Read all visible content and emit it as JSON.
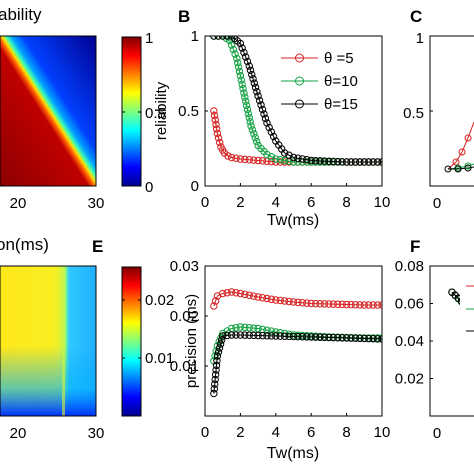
{
  "panel_labels": {
    "B": "B",
    "C": "C",
    "E": "E",
    "F": "F"
  },
  "texts": {
    "top_left_title_fragment": "ability",
    "bottom_left_xlabel_fragment": "on(ms)"
  },
  "colorbars": [
    {
      "label": "",
      "ticks": [
        "1",
        "0.5",
        "0"
      ]
    },
    {
      "label": "precision (ms)",
      "ticks": [
        "0.02",
        "0.01"
      ]
    }
  ],
  "heatmap_top": {
    "x_ticks": [
      "20",
      "30"
    ],
    "colormap": "jet"
  },
  "heatmap_bottom": {
    "x_ticks": [
      "20",
      "30"
    ],
    "colormap": "jet"
  },
  "panel_C": {
    "y_ticks": [
      "1",
      "0.5"
    ],
    "x_ticks": [
      "0"
    ]
  },
  "chart_data": [
    {
      "type": "line",
      "panel": "B",
      "xlabel": "Tw(ms)",
      "ylabel": "reliability",
      "xlim": [
        0,
        10
      ],
      "ylim": [
        0,
        1
      ],
      "x_ticks": [
        "0",
        "2",
        "4",
        "6",
        "8",
        "10"
      ],
      "y_ticks": [
        "0",
        "0.5",
        "1"
      ],
      "legend": "top-right",
      "colors": [
        "#d62020",
        "#10a040",
        "#000000"
      ],
      "series": [
        {
          "name": "θ =5",
          "x": [
            0.5,
            0.7,
            0.9,
            1.1,
            1.3,
            1.5,
            2,
            3,
            4,
            6,
            8,
            10
          ],
          "values": [
            0.5,
            0.35,
            0.26,
            0.22,
            0.2,
            0.19,
            0.18,
            0.17,
            0.16,
            0.16,
            0.16,
            0.16
          ]
        },
        {
          "name": "θ=10",
          "x": [
            0.5,
            1.0,
            1.4,
            1.8,
            2.2,
            2.6,
            3.0,
            3.5,
            4.0,
            5,
            6,
            8,
            10
          ],
          "values": [
            1.0,
            1.0,
            0.97,
            0.85,
            0.62,
            0.4,
            0.27,
            0.21,
            0.18,
            0.16,
            0.16,
            0.16,
            0.16
          ]
        },
        {
          "name": "θ=15",
          "x": [
            0.5,
            1.0,
            1.5,
            2.0,
            2.5,
            3.0,
            3.5,
            4.0,
            4.5,
            5,
            6,
            8,
            10
          ],
          "values": [
            1.0,
            1.0,
            1.0,
            0.95,
            0.8,
            0.6,
            0.42,
            0.3,
            0.22,
            0.19,
            0.17,
            0.16,
            0.16
          ]
        }
      ]
    },
    {
      "type": "line",
      "panel": "E",
      "xlabel": "Tw(ms)",
      "ylabel": "",
      "xlim": [
        0,
        10
      ],
      "ylim": [
        0,
        0.03
      ],
      "x_ticks": [
        "0",
        "2",
        "4",
        "6",
        "8",
        "10"
      ],
      "y_ticks": [
        "0.01",
        "0.02",
        "0.03"
      ],
      "colors": [
        "#d62020",
        "#10a040",
        "#000000"
      ],
      "series": [
        {
          "x": [
            0.5,
            0.7,
            1.0,
            1.5,
            2,
            3,
            4,
            5,
            6,
            7,
            8,
            9,
            10
          ],
          "values": [
            0.022,
            0.024,
            0.0245,
            0.0248,
            0.0245,
            0.0238,
            0.0232,
            0.0228,
            0.0225,
            0.0224,
            0.0223,
            0.0222,
            0.0222
          ]
        },
        {
          "x": [
            0.5,
            0.7,
            1.0,
            1.5,
            2,
            3,
            4,
            5,
            6,
            7,
            8,
            9,
            10
          ],
          "values": [
            0.011,
            0.014,
            0.0165,
            0.0175,
            0.0178,
            0.0175,
            0.0168,
            0.0162,
            0.016,
            0.0158,
            0.0157,
            0.0156,
            0.0156
          ]
        },
        {
          "x": [
            0.5,
            0.7,
            1.0,
            1.5,
            2,
            3,
            4,
            5,
            6,
            7,
            8,
            9,
            10
          ],
          "values": [
            0.0045,
            0.012,
            0.016,
            0.0162,
            0.0162,
            0.0161,
            0.016,
            0.0159,
            0.0158,
            0.0157,
            0.0156,
            0.0155,
            0.0154
          ]
        }
      ]
    },
    {
      "type": "line",
      "panel": "F",
      "ylim": [
        0,
        0.08
      ],
      "y_ticks": [
        "0.02",
        "0.04",
        "0.06",
        "0.08"
      ],
      "x_ticks": [
        "0"
      ],
      "colors": [
        "#d62020",
        "#10a040",
        "#000000"
      ],
      "series": [
        {
          "x": [
            0.5,
            1.0,
            1.5,
            2.0
          ],
          "values": [
            0.066,
            0.055,
            0.045,
            0.038
          ]
        },
        {
          "x": [
            0.5,
            1.0,
            1.5,
            2.0
          ],
          "values": [
            0.066,
            0.054,
            0.043,
            0.035
          ]
        },
        {
          "x": [
            0.5,
            1.0,
            1.5,
            2.0
          ],
          "values": [
            0.066,
            0.055,
            0.044,
            0.036
          ]
        }
      ]
    }
  ]
}
